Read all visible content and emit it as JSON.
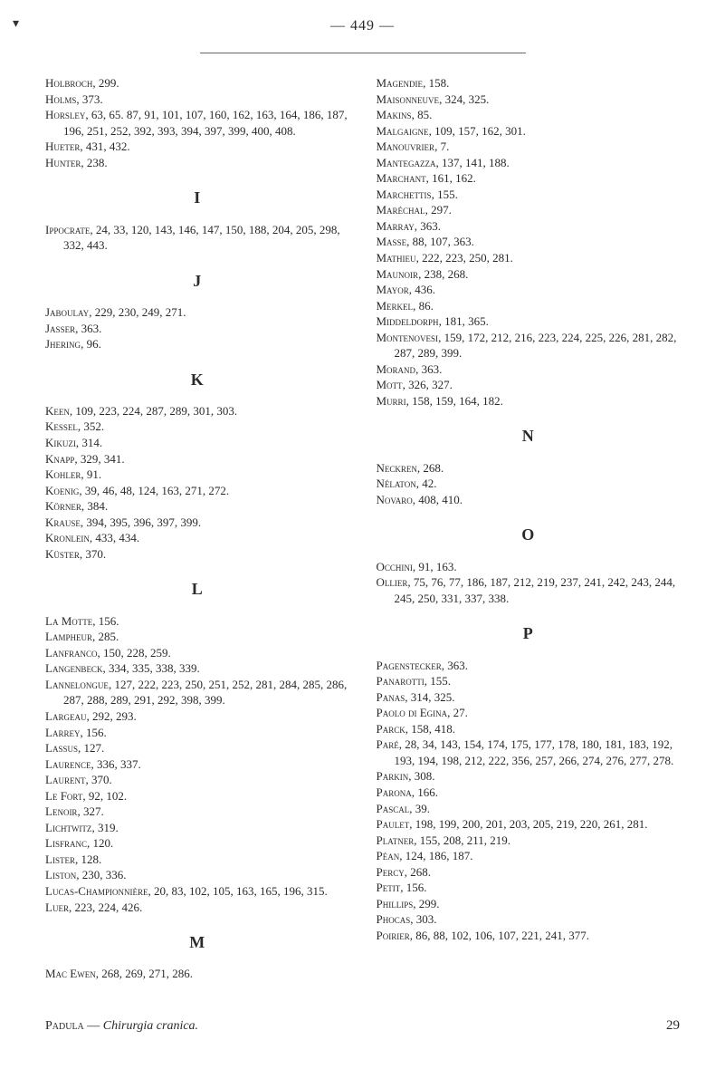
{
  "page_number": "— 449 —",
  "corner_mark": "▾",
  "left_column": {
    "initial": [
      {
        "name": "Holbroch",
        "refs": "299."
      },
      {
        "name": "Holms",
        "refs": "373."
      },
      {
        "name": "Horsley",
        "refs": "63, 65. 87, 91, 101, 107, 160, 162, 163, 164, 186, 187, 196, 251, 252, 392, 393, 394, 397, 399, 400, 408."
      },
      {
        "name": "Hueter",
        "refs": "431, 432."
      },
      {
        "name": "Hunter",
        "refs": "238."
      }
    ],
    "I": [
      {
        "name": "Ippocrate",
        "refs": "24, 33, 120, 143, 146, 147, 150, 188, 204, 205, 298, 332, 443."
      }
    ],
    "J": [
      {
        "name": "Jaboulay",
        "refs": "229, 230, 249, 271."
      },
      {
        "name": "Jasser",
        "refs": "363."
      },
      {
        "name": "Jhering",
        "refs": "96."
      }
    ],
    "K": [
      {
        "name": "Keen",
        "refs": "109, 223, 224, 287, 289, 301, 303."
      },
      {
        "name": "Kessel",
        "refs": "352."
      },
      {
        "name": "Kikuzi",
        "refs": "314."
      },
      {
        "name": "Knapp",
        "refs": "329, 341."
      },
      {
        "name": "Kohler",
        "refs": "91."
      },
      {
        "name": "Koenig",
        "refs": "39, 46, 48, 124, 163, 271, 272."
      },
      {
        "name": "Körner",
        "refs": "384."
      },
      {
        "name": "Krause",
        "refs": "394, 395, 396, 397, 399."
      },
      {
        "name": "Kronlein",
        "refs": "433, 434."
      },
      {
        "name": "Küster",
        "refs": "370."
      }
    ],
    "L": [
      {
        "name": "La Motte",
        "refs": "156."
      },
      {
        "name": "Lampheur",
        "refs": "285."
      },
      {
        "name": "Lanfranco",
        "refs": "150, 228, 259."
      },
      {
        "name": "Langenbeck",
        "refs": "334, 335, 338, 339."
      },
      {
        "name": "Lannelongue",
        "refs": "127, 222, 223, 250, 251, 252, 281, 284, 285, 286, 287, 288, 289, 291, 292, 398, 399."
      },
      {
        "name": "Largeau",
        "refs": "292, 293."
      },
      {
        "name": "Larrey",
        "refs": "156."
      },
      {
        "name": "Lassus",
        "refs": "127."
      },
      {
        "name": "Laurence",
        "refs": "336, 337."
      },
      {
        "name": "Laurent",
        "refs": "370."
      },
      {
        "name": "Le Fort",
        "refs": "92, 102."
      },
      {
        "name": "Lenoir",
        "refs": "327."
      },
      {
        "name": "Lichtwitz",
        "refs": "319."
      },
      {
        "name": "Lisfranc",
        "refs": "120."
      },
      {
        "name": "Lister",
        "refs": "128."
      },
      {
        "name": "Liston",
        "refs": "230, 336."
      },
      {
        "name": "Lucas-Championnière",
        "refs": "20, 83, 102, 105, 163, 165, 196, 315."
      },
      {
        "name": "Luer",
        "refs": "223, 224, 426."
      }
    ],
    "M": [
      {
        "name": "Mac Ewen",
        "refs": "268, 269, 271, 286."
      }
    ]
  },
  "right_column": {
    "initial": [
      {
        "name": "Magendie",
        "refs": "158."
      },
      {
        "name": "Maisonneuve",
        "refs": "324, 325."
      },
      {
        "name": "Makins",
        "refs": "85."
      },
      {
        "name": "Malgaigne",
        "refs": "109, 157, 162, 301."
      },
      {
        "name": "Manouvrier",
        "refs": "7."
      },
      {
        "name": "Mantegazza",
        "refs": "137, 141, 188."
      },
      {
        "name": "Marchant",
        "refs": "161, 162."
      },
      {
        "name": "Marchettis",
        "refs": "155."
      },
      {
        "name": "Maréchal",
        "refs": "297."
      },
      {
        "name": "Marray",
        "refs": "363."
      },
      {
        "name": "Masse",
        "refs": "88, 107, 363."
      },
      {
        "name": "Mathieu",
        "refs": "222, 223, 250, 281."
      },
      {
        "name": "Maunoir",
        "refs": "238, 268."
      },
      {
        "name": "Mayor",
        "refs": "436."
      },
      {
        "name": "Merkel",
        "refs": "86."
      },
      {
        "name": "Middeldorph",
        "refs": "181, 365."
      },
      {
        "name": "Montenovesi",
        "refs": "159, 172, 212, 216, 223, 224, 225, 226, 281, 282, 287, 289, 399."
      },
      {
        "name": "Morand",
        "refs": "363."
      },
      {
        "name": "Mott",
        "refs": "326, 327."
      },
      {
        "name": "Murri",
        "refs": "158, 159, 164, 182."
      }
    ],
    "N": [
      {
        "name": "Neckren",
        "refs": "268."
      },
      {
        "name": "Nélaton",
        "refs": "42."
      },
      {
        "name": "Novaro",
        "refs": "408, 410."
      }
    ],
    "O": [
      {
        "name": "Occhini",
        "refs": "91, 163."
      },
      {
        "name": "Ollier",
        "refs": "75, 76, 77, 186, 187, 212, 219, 237, 241, 242, 243, 244, 245, 250, 331, 337, 338."
      }
    ],
    "P": [
      {
        "name": "Pagenstecker",
        "refs": "363."
      },
      {
        "name": "Panarotti",
        "refs": "155."
      },
      {
        "name": "Panas",
        "refs": "314, 325."
      },
      {
        "name": "Paolo di Egina",
        "refs": "27."
      },
      {
        "name": "Parck",
        "refs": "158, 418."
      },
      {
        "name": "Paré",
        "refs": "28, 34, 143, 154, 174, 175, 177, 178, 180, 181, 183, 192, 193, 194, 198, 212, 222, 356, 257, 266, 274, 276, 277, 278."
      },
      {
        "name": "Parkin",
        "refs": "308."
      },
      {
        "name": "Parona",
        "refs": "166."
      },
      {
        "name": "Pascal",
        "refs": "39."
      },
      {
        "name": "Paulet",
        "refs": "198, 199, 200, 201, 203, 205, 219, 220, 261, 281."
      },
      {
        "name": "Platner",
        "refs": "155, 208, 211, 219."
      },
      {
        "name": "Péan",
        "refs": "124, 186, 187."
      },
      {
        "name": "Percy",
        "refs": "268."
      },
      {
        "name": "Petit",
        "refs": "156."
      },
      {
        "name": "Phillips",
        "refs": "299."
      },
      {
        "name": "Phocas",
        "refs": "303."
      },
      {
        "name": "Poirier",
        "refs": "86, 88, 102, 106, 107, 221, 241, 377."
      }
    ]
  },
  "footer": {
    "author": "Padula",
    "title": "Chirurgia cranica.",
    "sep": " — ",
    "page": "29"
  },
  "section_letters": {
    "I": "I",
    "J": "J",
    "K": "K",
    "L": "L",
    "M": "M",
    "N": "N",
    "O": "O",
    "P": "P"
  }
}
